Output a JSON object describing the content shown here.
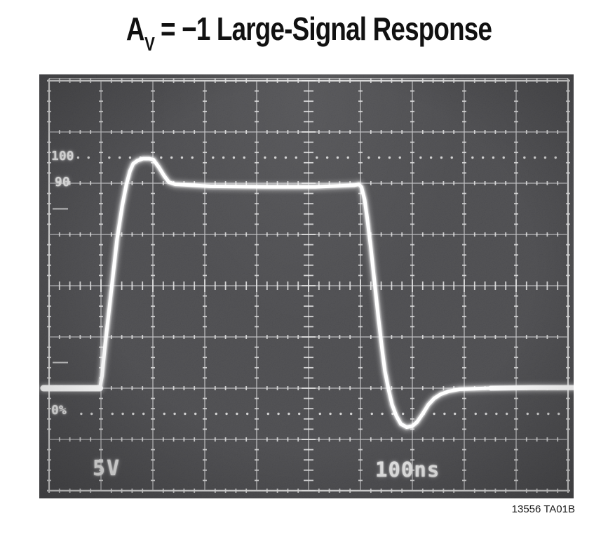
{
  "title": {
    "base": "A",
    "sub": "V",
    "rest": " = −1 Large-Signal Response"
  },
  "caption": "13556 TA01B",
  "scope": {
    "labels": {
      "p100": "100",
      "p90": "90",
      "p0": "0%",
      "volts_per_div": "5V",
      "time_per_div": "100ns"
    }
  },
  "colors": {
    "page_bg": "#ffffff",
    "title_text": "#111111",
    "screen_bg": "#47474a",
    "graticule": "#bfbfc1",
    "graticule_edge": "#d8d8d8",
    "tick": "#e2e2e2",
    "dot": "#dedede",
    "trace": "#ffffff",
    "screen_text": "#e6e6e6"
  },
  "chart_data": {
    "type": "line",
    "title": "AV = −1 Large-Signal Response",
    "x_units": "ns",
    "y_units": "V",
    "x_per_div": 100,
    "y_per_div": 5,
    "x_scale_label": "100ns",
    "y_scale_label": "5V",
    "divisions": {
      "x": 10,
      "y": 8
    },
    "xlim": [
      0,
      1000
    ],
    "v_zero_div_from_top": 6,
    "grid": "major lines with minor ticks, long-tick center axes",
    "legend": "none",
    "percent_markers": [
      {
        "label": "100",
        "v": 22.5,
        "style": "dotted",
        "dots_from_t": 56
      },
      {
        "label": "90",
        "v": 20.0,
        "style": "on-gridline"
      },
      {
        "label": "0%",
        "v": -2.5,
        "style": "dotted",
        "dots_from_t": 62
      }
    ],
    "edge_half_div_marks_v": [
      17.5,
      2.5
    ],
    "series": [
      {
        "name": "output-step-response",
        "t_ns": [
          -11,
          98,
          102,
          107,
          114,
          122,
          131,
          141,
          149,
          156,
          162,
          170,
          181,
          193,
          201,
          211,
          222,
          231,
          243,
          311,
          419,
          513,
          588,
          597,
          602,
          608,
          613,
          620,
          627,
          634,
          641,
          647,
          654,
          661,
          669,
          678,
          689,
          700,
          709,
          720,
          731,
          742,
          754,
          770,
          791,
          851,
          932,
          1011
        ],
        "v_V": [
          0,
          0,
          1.2,
          3.8,
          6.9,
          10.5,
          14.5,
          17.8,
          19.9,
          21.2,
          21.9,
          22.2,
          22.4,
          22.4,
          22.3,
          21.6,
          20.7,
          20.1,
          19.9,
          19.7,
          19.65,
          19.65,
          19.8,
          19.9,
          19.6,
          18.4,
          16.6,
          13.7,
          10.4,
          7.1,
          4.1,
          1.7,
          -0.1,
          -1.6,
          -2.7,
          -3.5,
          -3.8,
          -3.7,
          -3.3,
          -2.5,
          -1.6,
          -1.0,
          -0.6,
          -0.3,
          -0.1,
          0,
          0.05,
          0.05
        ]
      }
    ],
    "annotations": {
      "overshoot_peak_v": 22.4,
      "settled_high_v": 19.8,
      "baseline_v": 0,
      "undershoot_min_v": -3.85
    }
  }
}
